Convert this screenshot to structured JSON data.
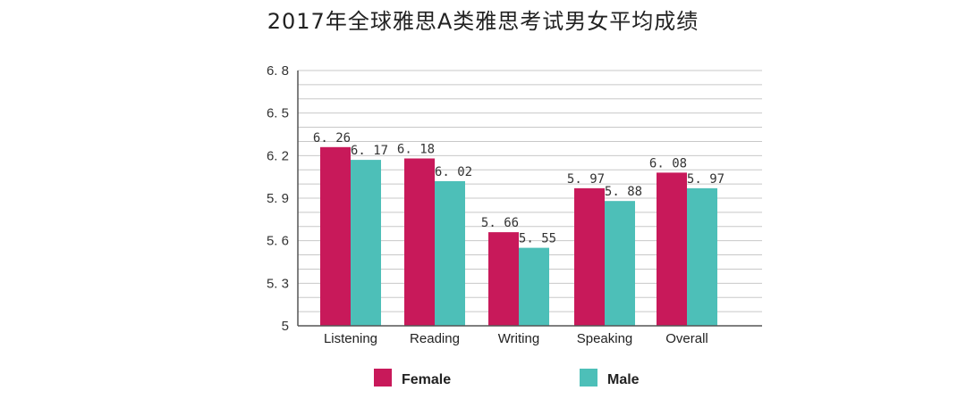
{
  "chart_data": {
    "type": "bar",
    "title": "2017年全球雅思A类雅思考试男女平均成绩",
    "categories": [
      "Listening",
      "Reading",
      "Writing",
      "Speaking",
      "Overall"
    ],
    "series": [
      {
        "name": "Female",
        "color": "#c8195a",
        "values": [
          6.26,
          6.18,
          5.66,
          5.97,
          6.08
        ],
        "labels": [
          "6. 26",
          "6. 18",
          "5. 66",
          "5. 97",
          "6. 08"
        ]
      },
      {
        "name": "Male",
        "color": "#4dbfb8",
        "values": [
          6.17,
          6.02,
          5.55,
          5.88,
          5.97
        ],
        "labels": [
          "6. 17",
          "6. 02",
          "5. 55",
          "5. 88",
          "5. 97"
        ]
      }
    ],
    "yticks": [
      5,
      5.3,
      5.6,
      5.9,
      6.2,
      6.5,
      6.8
    ],
    "ytick_labels": [
      "5",
      "5. 3",
      "5. 6",
      "5. 9",
      "6. 2",
      "6. 5",
      "6. 8"
    ],
    "ylim": [
      5,
      6.8
    ],
    "grid": true,
    "legend_position": "bottom"
  }
}
